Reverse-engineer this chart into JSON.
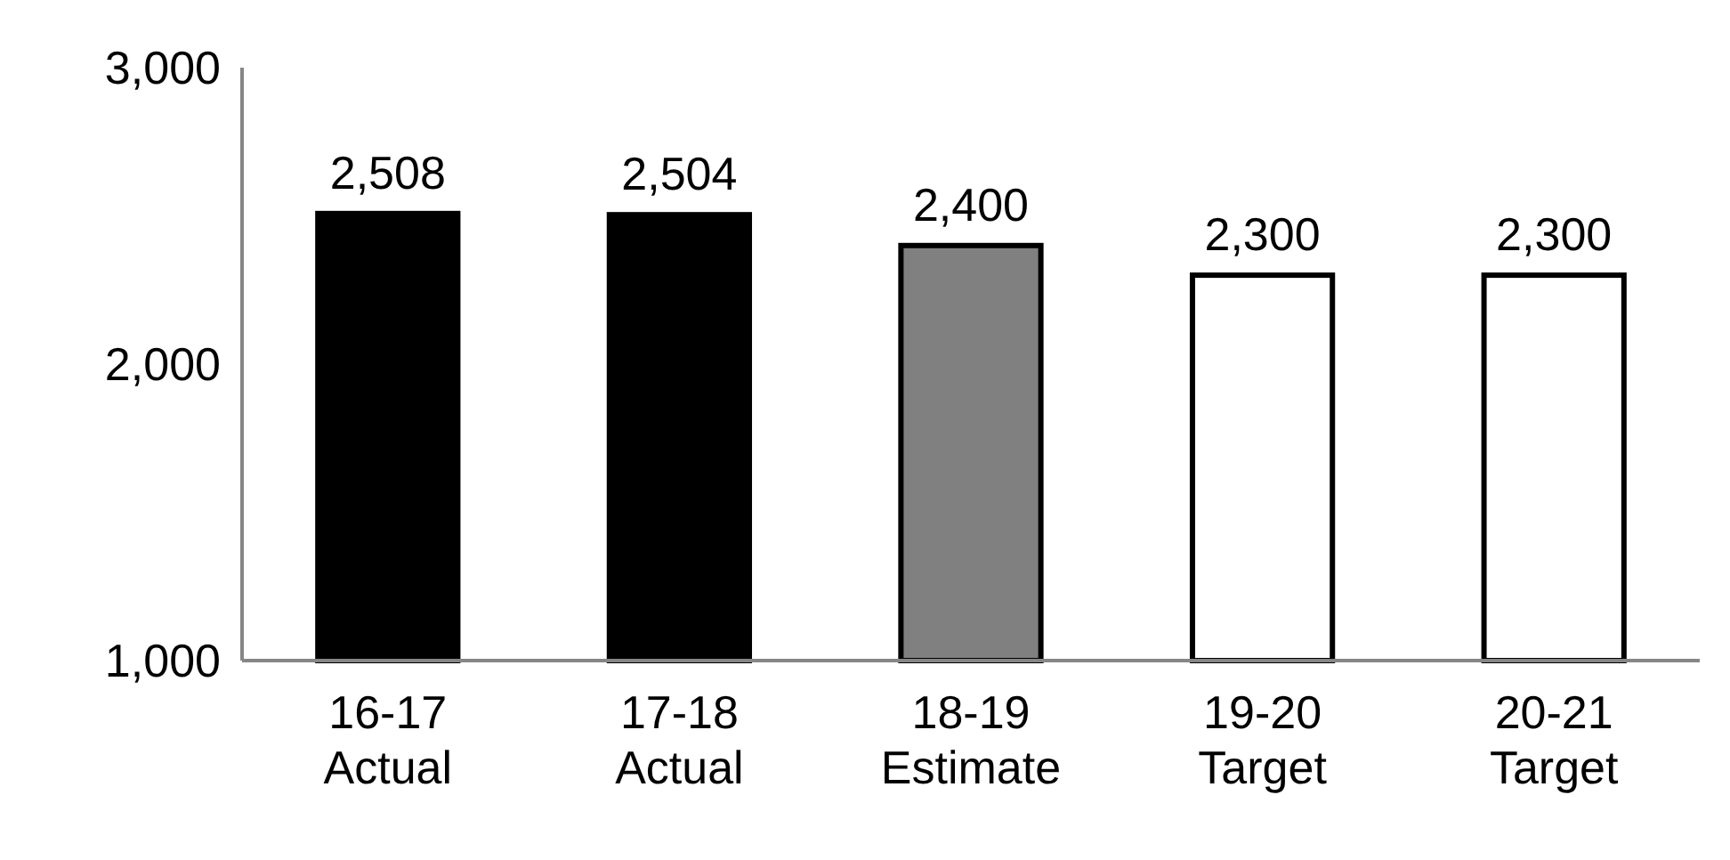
{
  "chart_data": {
    "type": "bar",
    "categories": [
      "16-17\nActual",
      "17-18\nActual",
      "18-19\nEstimate",
      "19-20\nTarget",
      "20-21\nTarget"
    ],
    "values": [
      2508,
      2504,
      2400,
      2300,
      2300
    ],
    "colors": [
      "#000000",
      "#000000",
      "#808080",
      "#ffffff",
      "#ffffff"
    ],
    "ylim": [
      1000,
      3000
    ],
    "yticks": [
      {
        "value": 1000,
        "label": "1,000"
      },
      {
        "value": 2000,
        "label": "2,000"
      },
      {
        "value": 3000,
        "label": "3,000"
      }
    ],
    "value_labels": [
      "2,508",
      "2,504",
      "2,400",
      "2,300",
      "2,300"
    ],
    "grid": false
  }
}
